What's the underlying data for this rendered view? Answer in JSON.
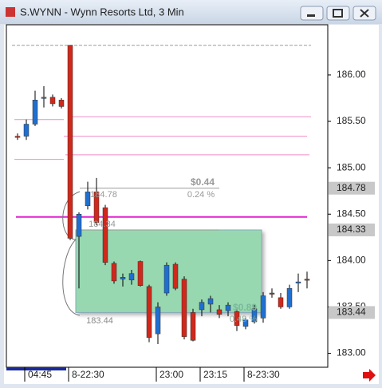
{
  "chart_data": {
    "type": "candlestick",
    "title": "S.WYNN - Wynn Resorts Ltd, 3 Min",
    "open": [
      185.34,
      185.34,
      185.47,
      185.75,
      185.76,
      185.73,
      186.32,
      184.26,
      184.59,
      184.74,
      184.57,
      183.97,
      183.8,
      183.79,
      183.99,
      183.72,
      183.21,
      183.65,
      183.96,
      183.8,
      183.44,
      183.47,
      183.53,
      183.47,
      183.46,
      183.45,
      183.29,
      183.34,
      183.38,
      183.65,
      183.6,
      183.5,
      183.76,
      183.8
    ],
    "high": [
      185.37,
      185.52,
      185.83,
      185.88,
      185.79,
      185.75,
      186.32,
      184.52,
      184.85,
      184.89,
      184.6,
      183.99,
      183.86,
      183.9,
      184.0,
      183.74,
      183.55,
      183.98,
      183.98,
      183.83,
      183.48,
      183.58,
      183.62,
      183.52,
      183.55,
      183.48,
      183.38,
      183.52,
      183.66,
      183.7,
      183.65,
      183.74,
      183.86,
      183.88
    ],
    "low": [
      185.3,
      185.3,
      185.45,
      185.65,
      185.66,
      185.64,
      184.22,
      183.7,
      184.55,
      184.38,
      183.95,
      183.75,
      183.72,
      183.74,
      183.72,
      183.12,
      183.1,
      183.62,
      183.68,
      183.15,
      183.13,
      183.4,
      183.44,
      183.38,
      183.4,
      183.24,
      183.26,
      183.32,
      183.33,
      183.6,
      183.48,
      183.48,
      183.66,
      183.7
    ],
    "close": [
      185.33,
      185.47,
      185.73,
      185.76,
      185.69,
      185.66,
      184.24,
      184.5,
      184.74,
      184.41,
      183.98,
      183.78,
      183.82,
      183.86,
      183.73,
      183.17,
      183.5,
      183.95,
      183.7,
      183.18,
      183.14,
      183.55,
      183.59,
      183.42,
      183.52,
      183.3,
      183.36,
      183.48,
      183.62,
      183.64,
      183.5,
      183.7,
      183.77,
      183.79
    ],
    "up_color": "#1f6fd0",
    "down_color": "#d0281a",
    "ylim": [
      182.85,
      186.55
    ],
    "yticks": [
      {
        "value": 183,
        "label": "183.00"
      },
      {
        "value": 183.5,
        "label": "183.50"
      },
      {
        "value": 184,
        "label": "184.00"
      },
      {
        "value": 184.5,
        "label": "184.50"
      },
      {
        "value": 185,
        "label": "185.00"
      },
      {
        "value": 185.5,
        "label": "185.50"
      },
      {
        "value": 186,
        "label": "186.00"
      }
    ],
    "xticks": [
      {
        "value": 1,
        "label": "04:45"
      },
      {
        "value": 6,
        "label": "8-22:30"
      },
      {
        "value": 16,
        "label": "23:00"
      },
      {
        "value": 21,
        "label": "23:15"
      },
      {
        "value": 26,
        "label": "8-23:30"
      }
    ],
    "levels": [
      {
        "value": 186.32,
        "color": "#9a9a9a"
      },
      {
        "value": 185.55,
        "color": "#f28ac8"
      },
      {
        "value": 185.52,
        "color": "#f28ac8"
      },
      {
        "value": 185.34,
        "color": "#f28ac8"
      },
      {
        "value": 185.14,
        "color": "#f28ac8"
      },
      {
        "value": 185.09,
        "color": "#f28ac8"
      },
      {
        "value": 184.78,
        "color": "#9a9a9a"
      },
      {
        "value": 184.47,
        "color": "#e020d0"
      },
      {
        "value": 184.33,
        "color": "#9a9a9a"
      }
    ],
    "price_tags": [
      {
        "value": 184.78,
        "label": "184.78"
      },
      {
        "value": 184.33,
        "label": "184.33"
      },
      {
        "value": 183.44,
        "label": "183.44"
      }
    ],
    "box": {
      "top": 184.33,
      "bottom": 183.44,
      "color": "#98d8b0"
    },
    "annotations": [
      "$0.44",
      "0.24 %",
      "184.78",
      "184.34",
      "183.44",
      "$0.89",
      "0.48 %"
    ]
  }
}
